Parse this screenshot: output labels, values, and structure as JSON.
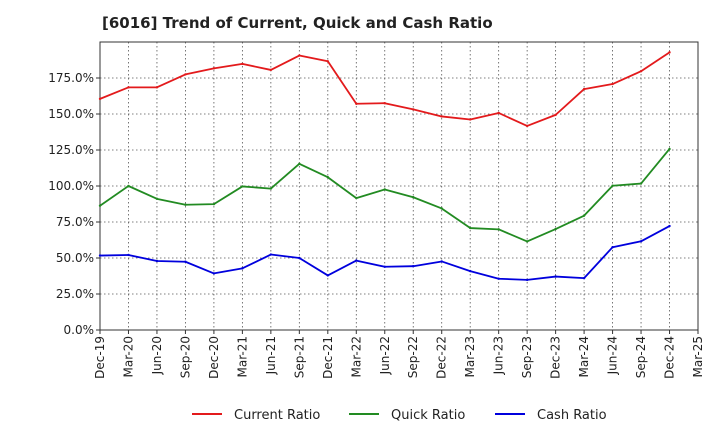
{
  "chart_data": {
    "type": "line",
    "title": "[6016]  Trend of Current, Quick and Cash Ratio",
    "xlabel": "",
    "ylabel": "",
    "ylim": [
      0,
      200
    ],
    "grid": "dotted",
    "legend_position": "bottom",
    "x_tick_labels": [
      "Dec-19",
      "Mar-20",
      "Jun-20",
      "Sep-20",
      "Dec-20",
      "Mar-21",
      "Jun-21",
      "Sep-21",
      "Dec-21",
      "Mar-22",
      "Jun-22",
      "Sep-22",
      "Dec-22",
      "Mar-23",
      "Jun-23",
      "Sep-23",
      "Dec-23",
      "Mar-24",
      "Jun-24",
      "Sep-24",
      "Dec-24",
      "Mar-25"
    ],
    "y_ticks": [
      0,
      25,
      50,
      75,
      100,
      125,
      150,
      175
    ],
    "y_tick_labels": [
      "0.0%",
      "25.0%",
      "50.0%",
      "75.0%",
      "100.0%",
      "125.0%",
      "150.0%",
      "175.0%"
    ],
    "categories": [
      "Dec-19",
      "Mar-20",
      "Jun-20",
      "Sep-20",
      "Dec-20",
      "Mar-21",
      "Jun-21",
      "Sep-21",
      "Dec-21",
      "Mar-22",
      "Jun-22",
      "Sep-22",
      "Dec-22",
      "Mar-23",
      "Jun-23",
      "Sep-23",
      "Dec-23",
      "Mar-24",
      "Jun-24",
      "Sep-24",
      "Dec-24"
    ],
    "series": [
      {
        "name": "Current Ratio",
        "color": "#e31a1c",
        "values": [
          160.5,
          168.5,
          168.5,
          177.5,
          181.7,
          184.8,
          180.6,
          190.6,
          186.6,
          157.1,
          157.5,
          153.2,
          148.3,
          146.2,
          150.7,
          141.7,
          149.4,
          167.3,
          170.8,
          179.7,
          192.8
        ]
      },
      {
        "name": "Quick Ratio",
        "color": "#228b22",
        "values": [
          86.3,
          100.0,
          91.1,
          87.0,
          87.4,
          99.7,
          98.2,
          115.4,
          106.1,
          91.6,
          97.6,
          92.2,
          84.4,
          70.8,
          69.9,
          61.5,
          70.1,
          79.4,
          100.2,
          101.7,
          125.7
        ]
      },
      {
        "name": "Cash Ratio",
        "color": "#0000dd",
        "values": [
          51.7,
          52.1,
          47.9,
          47.4,
          39.3,
          42.8,
          52.4,
          50.0,
          37.9,
          48.2,
          43.9,
          44.3,
          47.6,
          40.9,
          35.6,
          34.8,
          37.1,
          36.0,
          57.5,
          61.6,
          72.2
        ]
      }
    ]
  }
}
